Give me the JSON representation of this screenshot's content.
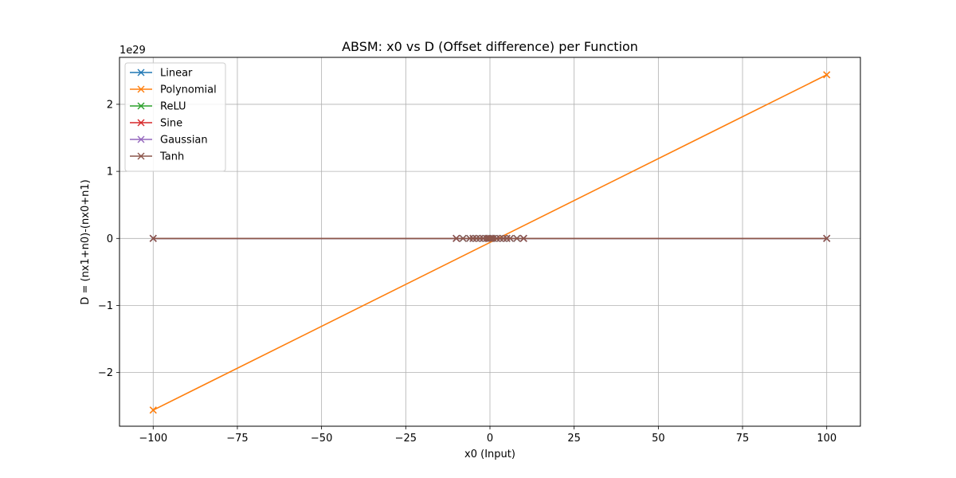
{
  "chart_data": {
    "type": "line",
    "title": "ABSM: x0 vs D (Offset difference) per Function",
    "xlabel": "x0 (Input)",
    "ylabel": "D = (nx1+n0)-(nx0+n1)",
    "y_offset_label": "1e29",
    "xlim": [
      -110,
      110
    ],
    "ylim": [
      -2.8,
      2.7
    ],
    "y_scale_exponent": 29,
    "grid": true,
    "legend_position": "upper left",
    "x_ticks": [
      -100,
      -75,
      -50,
      -25,
      0,
      25,
      50,
      75,
      100
    ],
    "x_tick_labels": [
      "−100",
      "−75",
      "−50",
      "−25",
      "0",
      "25",
      "50",
      "75",
      "100"
    ],
    "y_ticks": [
      -2,
      -1,
      0,
      1,
      2
    ],
    "y_tick_labels": [
      "−2",
      "−1",
      "0",
      "1",
      "2"
    ],
    "marker": "x",
    "series": [
      {
        "name": "Linear",
        "color": "#1f77b4",
        "x": [
          -100,
          -10,
          -8,
          -6,
          -5,
          -4,
          -3,
          -2,
          -1,
          -0.5,
          0,
          0.5,
          1,
          2,
          3,
          4,
          5,
          6,
          8,
          10,
          100
        ],
        "y": [
          0,
          0,
          0,
          0,
          0,
          0,
          0,
          0,
          0,
          0,
          0,
          0,
          0,
          0,
          0,
          0,
          0,
          0,
          0,
          0,
          0
        ]
      },
      {
        "name": "Polynomial",
        "color": "#ff7f0e",
        "x": [
          -100,
          100,
          -100,
          100
        ],
        "y": [
          -2.56,
          2.44,
          -2.56,
          2.44
        ]
      },
      {
        "name": "ReLU",
        "color": "#2ca02c",
        "x": [
          -100,
          -10,
          -5,
          -2,
          0,
          2,
          5,
          10,
          100
        ],
        "y": [
          0,
          0,
          0,
          0,
          0,
          0,
          0,
          0,
          0
        ]
      },
      {
        "name": "Sine",
        "color": "#d62728",
        "x": [
          -100,
          -10,
          -5,
          -2,
          0,
          2,
          5,
          10,
          100
        ],
        "y": [
          0,
          0,
          0,
          0,
          0,
          0,
          0,
          0,
          0
        ]
      },
      {
        "name": "Gaussian",
        "color": "#9467bd",
        "x": [
          -100,
          -10,
          -5,
          -2,
          0,
          2,
          5,
          10,
          100
        ],
        "y": [
          0,
          0,
          0,
          0,
          0,
          0,
          0,
          0,
          0
        ]
      },
      {
        "name": "Tanh",
        "color": "#8c564b",
        "x": [
          -100,
          -10,
          -8,
          -6,
          -5,
          -4,
          -3,
          -2,
          -1,
          -0.5,
          0,
          0.5,
          1,
          2,
          3,
          4,
          5,
          6,
          8,
          10,
          100
        ],
        "y": [
          0,
          0,
          0,
          0,
          0,
          0,
          0,
          0,
          0,
          0,
          0,
          0,
          0,
          0,
          0,
          0,
          0,
          0,
          0,
          0,
          0
        ]
      }
    ]
  }
}
